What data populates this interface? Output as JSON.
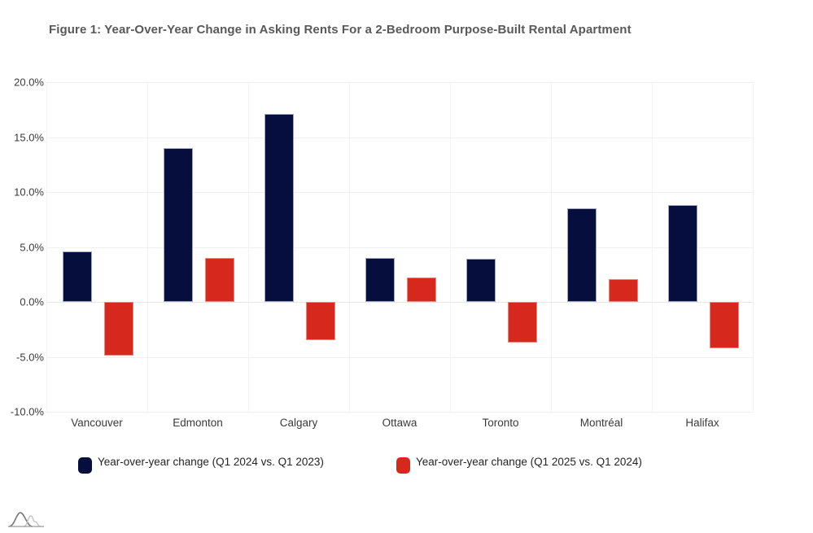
{
  "figure_title": "Figure 1: Year-Over-Year Change in Asking Rents For a 2-Bedroom Purpose-Built Rental Apartment",
  "chart_data": {
    "type": "bar",
    "categories": [
      "Vancouver",
      "Edmonton",
      "Calgary",
      "Ottawa",
      "Toronto",
      "Montréal",
      "Halifax"
    ],
    "series": [
      {
        "name": "Year-over-year change (Q1 2024 vs. Q1 2023)",
        "color": "#050e3c",
        "border_color": "#9fa3c0",
        "values": [
          4.6,
          14.0,
          17.1,
          4.0,
          3.9,
          8.5,
          8.8
        ]
      },
      {
        "name": "Year-over-year change (Q1 2025 vs. Q1 2024)",
        "color": "#d7281d",
        "border_color": "#e8897f",
        "values": [
          -4.9,
          4.0,
          -3.5,
          2.2,
          -3.7,
          2.1,
          -4.2
        ]
      }
    ],
    "title": "Figure 1: Year-Over-Year Change in Asking Rents For a 2-Bedroom Purpose-Built Rental Apartment",
    "xlabel": "",
    "ylabel": "",
    "ylim": [
      -10,
      20
    ],
    "yticks": [
      20,
      15,
      10,
      5,
      0,
      -5,
      -10
    ],
    "ytick_labels": [
      "20.0%",
      "15.0%",
      "10.0%",
      "5.0%",
      "0.0%",
      "-5.0%",
      "-10.0%"
    ],
    "grid": true,
    "legend_position": "bottom"
  },
  "colors": {
    "background": "#ffffff",
    "title_text": "#595959",
    "axis_text": "#3a3a3a",
    "legend_text": "#252423",
    "gridline": "#f0f0f0"
  },
  "icons": {
    "logo": "distribution-curves-logo"
  }
}
